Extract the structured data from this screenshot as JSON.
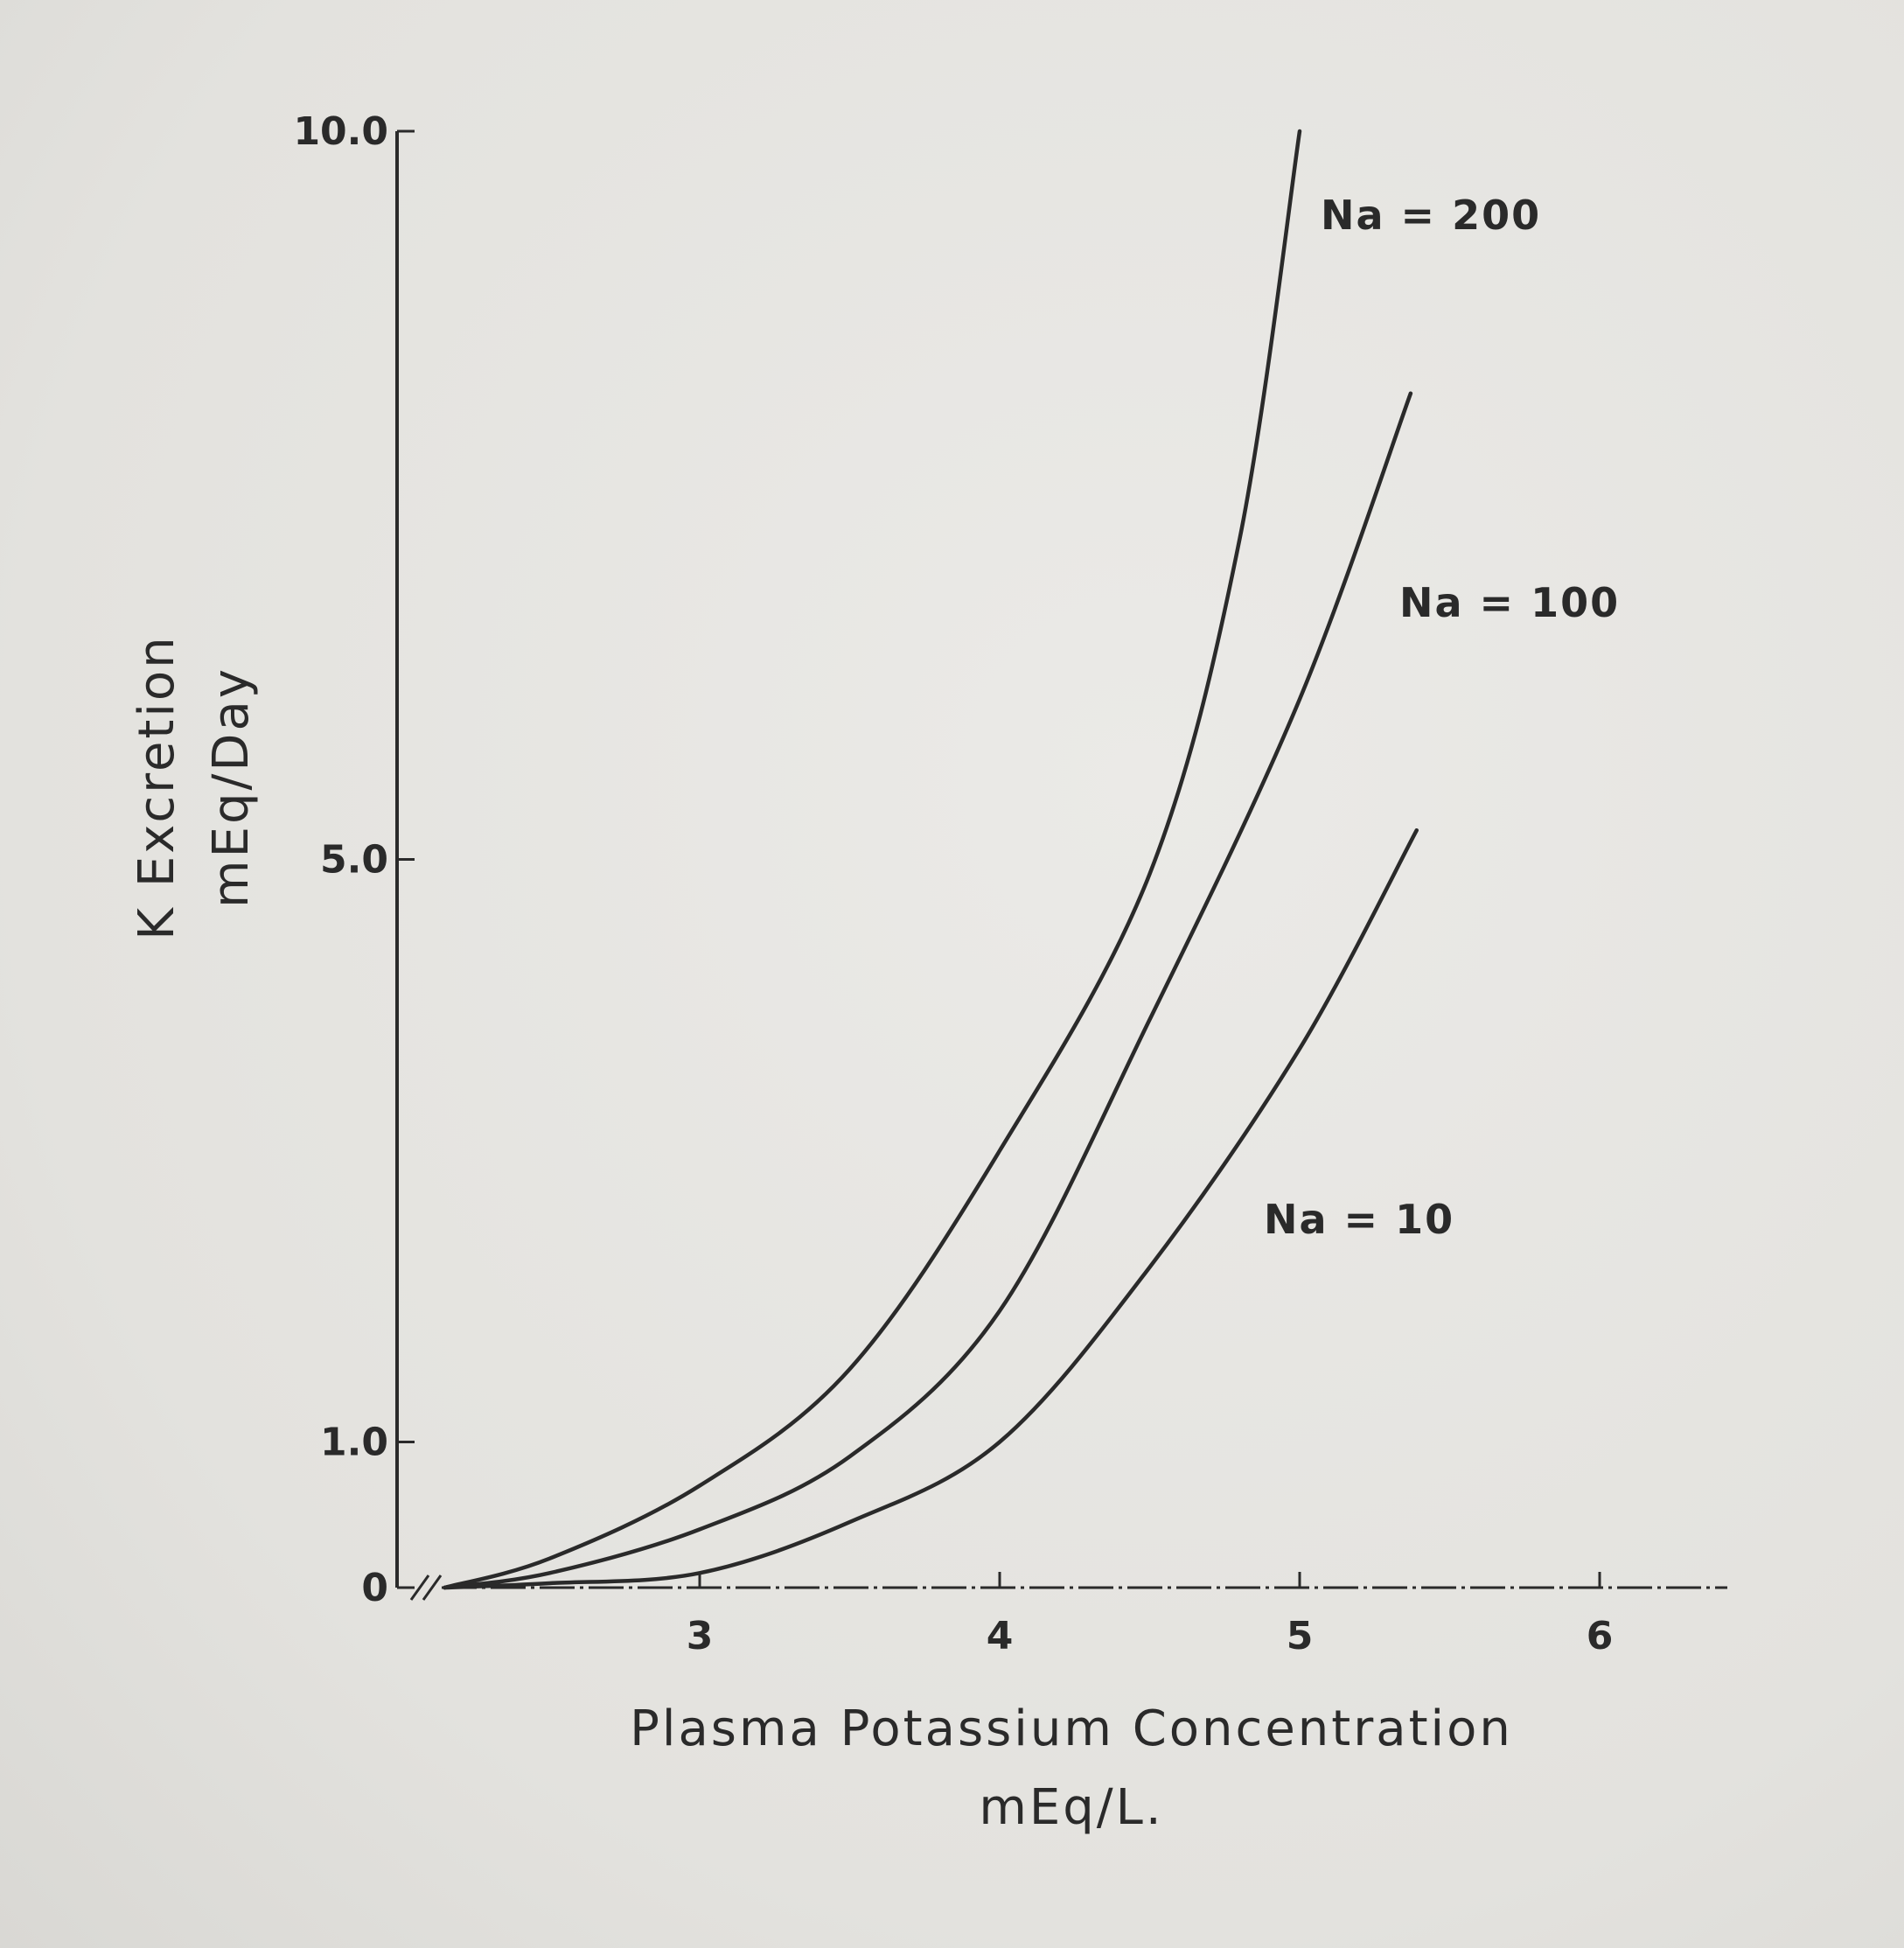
{
  "chart_data": {
    "type": "line",
    "title": "",
    "xlabel": "Plasma Potassium Concentration",
    "xlabel_units": "mEq/L.",
    "ylabel": "K Excretion",
    "ylabel_units": "mEq/Day",
    "xlim": [
      2.0,
      6.4
    ],
    "ylim": [
      0,
      10
    ],
    "x_ticks": [
      3,
      4,
      5,
      6
    ],
    "x_tick_labels": [
      "3",
      "4",
      "5",
      "6"
    ],
    "y_ticks": [
      0,
      1,
      5,
      10
    ],
    "y_tick_labels": [
      "0",
      "1.0",
      "5.0",
      "10.0"
    ],
    "axis_break": true,
    "grid": false,
    "legend": "inline labels",
    "series": [
      {
        "name": "Na = 200",
        "label": "Na = 200",
        "x": [
          2.15,
          2.5,
          3.0,
          3.5,
          4.0,
          4.5,
          4.8,
          5.0
        ],
        "y": [
          0,
          0.2,
          0.7,
          1.5,
          3.0,
          4.9,
          7.2,
          10.0
        ]
      },
      {
        "name": "Na = 100",
        "label": "Na = 100",
        "x": [
          2.15,
          2.5,
          3.0,
          3.5,
          4.0,
          4.5,
          5.0,
          5.37
        ],
        "y": [
          0,
          0.1,
          0.4,
          0.9,
          1.9,
          3.9,
          6.1,
          8.2
        ]
      },
      {
        "name": "Na = 10",
        "label": "Na = 10",
        "x": [
          2.15,
          2.5,
          3.0,
          3.5,
          4.0,
          4.5,
          5.0,
          5.39
        ],
        "y": [
          0,
          0.03,
          0.1,
          0.45,
          1.0,
          2.2,
          3.7,
          5.2
        ]
      }
    ],
    "colors": {
      "ink": "#2a2a2a",
      "paper": "#e6e5e1"
    }
  }
}
